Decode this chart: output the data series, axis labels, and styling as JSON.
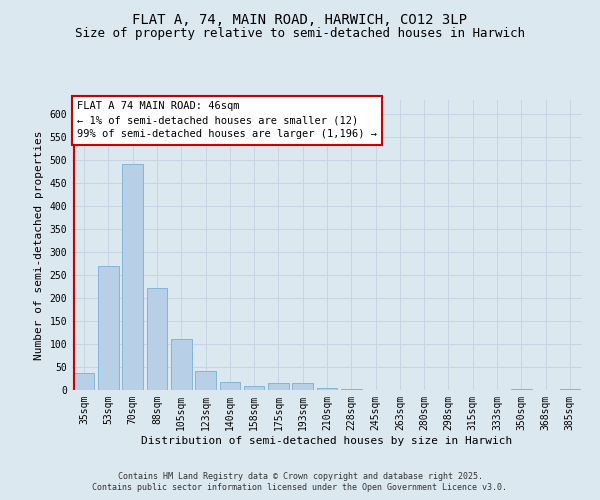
{
  "title_line1": "FLAT A, 74, MAIN ROAD, HARWICH, CO12 3LP",
  "title_line2": "Size of property relative to semi-detached houses in Harwich",
  "xlabel": "Distribution of semi-detached houses by size in Harwich",
  "ylabel": "Number of semi-detached properties",
  "categories": [
    "35sqm",
    "53sqm",
    "70sqm",
    "88sqm",
    "105sqm",
    "123sqm",
    "140sqm",
    "158sqm",
    "175sqm",
    "193sqm",
    "210sqm",
    "228sqm",
    "245sqm",
    "263sqm",
    "280sqm",
    "298sqm",
    "315sqm",
    "333sqm",
    "350sqm",
    "368sqm",
    "385sqm"
  ],
  "values": [
    37,
    270,
    490,
    222,
    110,
    42,
    18,
    8,
    15,
    15,
    5,
    2,
    1,
    1,
    0,
    0,
    0,
    0,
    3,
    0,
    3
  ],
  "bar_color": "#b8cfe8",
  "bar_edge_color": "#7aafd4",
  "highlight_color": "#cc0000",
  "annotation_text": "FLAT A 74 MAIN ROAD: 46sqm\n← 1% of semi-detached houses are smaller (12)\n99% of semi-detached houses are larger (1,196) →",
  "annotation_box_color": "#cc0000",
  "ylim": [
    0,
    630
  ],
  "yticks": [
    0,
    50,
    100,
    150,
    200,
    250,
    300,
    350,
    400,
    450,
    500,
    550,
    600
  ],
  "grid_color": "#c8d4e4",
  "background_color": "#dce8f0",
  "footer_text": "Contains HM Land Registry data © Crown copyright and database right 2025.\nContains public sector information licensed under the Open Government Licence v3.0.",
  "title_fontsize": 10,
  "subtitle_fontsize": 9,
  "axis_label_fontsize": 8,
  "tick_fontsize": 7,
  "annotation_fontsize": 7.5,
  "footer_fontsize": 6
}
